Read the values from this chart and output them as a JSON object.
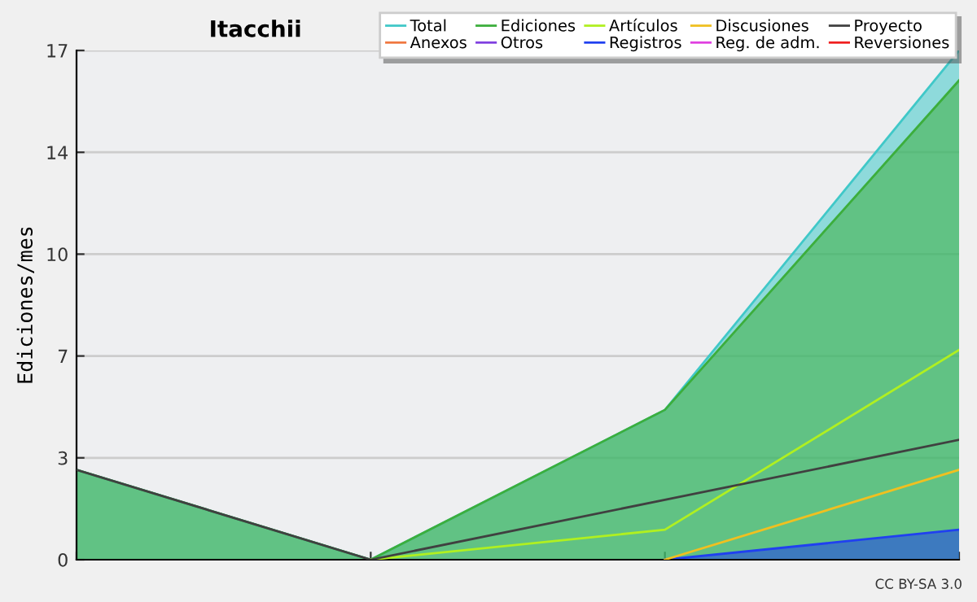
{
  "chart_data": {
    "type": "line",
    "title": "Itacchii",
    "ylabel": "Ediciones/mes",
    "categories": [
      null,
      null,
      null,
      null
    ],
    "series": [
      {
        "name": "Total",
        "type": "area",
        "color": "#40c8c8",
        "values": [
          3,
          0,
          5,
          17
        ]
      },
      {
        "name": "Ediciones",
        "type": "area",
        "color": "#3cae3c",
        "values": [
          3,
          0,
          5,
          16
        ]
      },
      {
        "name": "Artículos",
        "color": "#b0f020",
        "values": [
          null,
          0,
          1,
          7
        ]
      },
      {
        "name": "Discusiones",
        "color": "#f0c020",
        "values": [
          null,
          null,
          0,
          3
        ]
      },
      {
        "name": "Proyecto",
        "color": "#404040",
        "values": [
          3,
          0,
          2,
          4
        ]
      },
      {
        "name": "Anexos",
        "color": "#f07840",
        "values": [
          null,
          null,
          null,
          null
        ]
      },
      {
        "name": "Otros",
        "color": "#8040e0",
        "values": [
          null,
          null,
          null,
          null
        ]
      },
      {
        "name": "Registros",
        "type": "area",
        "color": "#2040f0",
        "values": [
          null,
          null,
          0,
          1
        ]
      },
      {
        "name": "Reg. de adm.",
        "color": "#e040e0",
        "values": [
          null,
          null,
          null,
          null
        ]
      },
      {
        "name": "Reversiones",
        "color": "#f02020",
        "values": [
          null,
          null,
          null,
          null
        ]
      }
    ],
    "ylim": [
      0,
      17
    ],
    "yticks": [
      0,
      {
        "value": 3.4,
        "label": "3"
      },
      {
        "value": 6.8,
        "label": "7"
      },
      {
        "value": 10.2,
        "label": "10"
      },
      {
        "value": 13.6,
        "label": "14"
      },
      17
    ],
    "grid": "y",
    "legend": "top right",
    "annotations": [
      "CC BY-SA 3.0"
    ]
  }
}
